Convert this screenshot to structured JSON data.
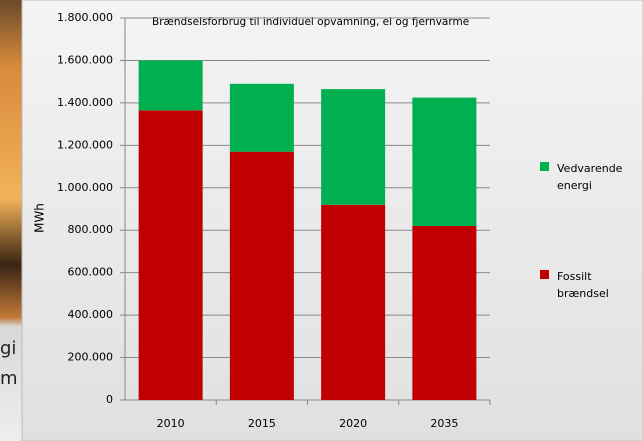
{
  "background_text": [
    "gi",
    "m"
  ],
  "chart_data": {
    "type": "stacked_bar",
    "title": "Brændselsforbrug til individuel opvamning, el og fjernvarme",
    "ylabel": "MWh",
    "categories": [
      "2010",
      "2015",
      "2020",
      "2035"
    ],
    "series": [
      {
        "name": "Fossilt brændsel",
        "color": "#c00000",
        "values": [
          1365000,
          1170000,
          920000,
          820000
        ]
      },
      {
        "name": "Vedvarende energi",
        "color": "#00b050",
        "values": [
          235000,
          320000,
          545000,
          605000
        ]
      }
    ],
    "ylim": [
      0,
      1800000
    ],
    "yticks": [
      0,
      {
        "value": 200000,
        "label": "200.000"
      },
      {
        "value": 400000,
        "label": "400.000"
      },
      {
        "value": 600000,
        "label": "600.000"
      },
      {
        "value": 800000,
        "label": "800.000"
      },
      {
        "value": 1000000,
        "label": "1.000.000"
      },
      {
        "value": 1200000,
        "label": "1.200.000"
      },
      {
        "value": 1400000,
        "label": "1.400.000"
      },
      {
        "value": 1600000,
        "label": "1.600.000"
      },
      {
        "value": 1800000,
        "label": "1.800.000"
      }
    ],
    "grid": true,
    "legend": "right"
  }
}
